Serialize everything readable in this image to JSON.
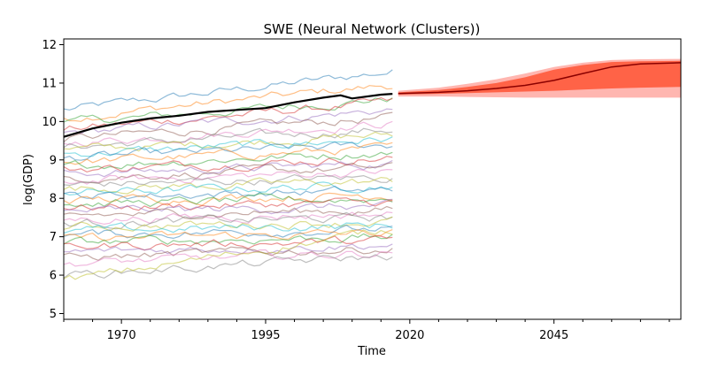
{
  "chart_data": {
    "type": "line",
    "title": "SWE (Neural Network (Clusters))",
    "xlabel": "Time",
    "ylabel": "log(GDP)",
    "xlim": [
      1960,
      2067
    ],
    "ylim": [
      4.85,
      12.15
    ],
    "x_ticks": [
      1970,
      1995,
      2020,
      2045
    ],
    "x_tick_labels": [
      "1970",
      "1995",
      "2020",
      "2045"
    ],
    "y_ticks": [
      5,
      6,
      7,
      8,
      9,
      10,
      11,
      12
    ],
    "y_tick_labels": [
      "5",
      "6",
      "7",
      "8",
      "9",
      "10",
      "11",
      "12"
    ],
    "grid": false,
    "legend": false,
    "colors": {
      "highlight": "#000000",
      "forecast_line": "#8b0000",
      "band_inner": "#ff6347",
      "band_outer": "#ffb6b0",
      "palette": [
        "#1f77b4",
        "#ff7f0e",
        "#2ca02c",
        "#d62728",
        "#9467bd",
        "#8c564b",
        "#e377c2",
        "#7f7f7f",
        "#bcbd22",
        "#17becf"
      ]
    },
    "history_x_range": [
      1960,
      2017
    ],
    "highlight_series": {
      "x": [
        1960,
        1965,
        1970,
        1975,
        1980,
        1985,
        1990,
        1995,
        2000,
        2005,
        2008,
        2010,
        2015,
        2017
      ],
      "y": [
        9.6,
        9.82,
        9.97,
        10.08,
        10.15,
        10.25,
        10.3,
        10.35,
        10.5,
        10.62,
        10.68,
        10.6,
        10.7,
        10.72
      ]
    },
    "forecast": {
      "x": [
        2018,
        2025,
        2030,
        2035,
        2040,
        2045,
        2050,
        2055,
        2060,
        2067
      ],
      "median": [
        10.73,
        10.76,
        10.8,
        10.86,
        10.94,
        11.07,
        11.25,
        11.42,
        11.5,
        11.53
      ],
      "inner_low": [
        10.7,
        10.72,
        10.74,
        10.76,
        10.78,
        10.8,
        10.83,
        10.86,
        10.88,
        10.9
      ],
      "inner_high": [
        10.76,
        10.82,
        10.9,
        11.0,
        11.15,
        11.35,
        11.47,
        11.55,
        11.57,
        11.58
      ],
      "outer_low": [
        10.65,
        10.65,
        10.64,
        10.63,
        10.62,
        10.62,
        10.62,
        10.62,
        10.62,
        10.62
      ],
      "outer_high": [
        10.8,
        10.88,
        10.98,
        11.1,
        11.25,
        11.42,
        11.53,
        11.6,
        11.62,
        11.63
      ]
    },
    "background_series_starts": [
      10.3,
      10.1,
      9.95,
      9.8,
      9.7,
      9.55,
      9.45,
      9.35,
      9.25,
      9.15,
      9.05,
      8.95,
      8.85,
      8.75,
      8.65,
      8.55,
      8.45,
      8.35,
      8.25,
      8.15,
      8.05,
      7.95,
      7.85,
      7.75,
      7.65,
      7.55,
      7.45,
      7.35,
      7.25,
      7.15,
      7.05,
      6.95,
      6.85,
      6.75,
      6.6,
      6.45,
      6.3,
      6.0,
      5.85
    ],
    "background_series_ends": [
      11.3,
      10.95,
      10.6,
      10.5,
      10.3,
      10.1,
      9.95,
      9.8,
      9.65,
      9.55,
      9.4,
      9.3,
      9.2,
      9.05,
      8.9,
      8.8,
      8.7,
      8.55,
      8.45,
      8.35,
      8.2,
      8.1,
      8.0,
      7.9,
      7.8,
      7.7,
      7.6,
      7.5,
      7.4,
      7.3,
      7.2,
      7.1,
      7.0,
      6.9,
      6.8,
      6.7,
      6.6,
      6.5,
      7.2
    ]
  }
}
